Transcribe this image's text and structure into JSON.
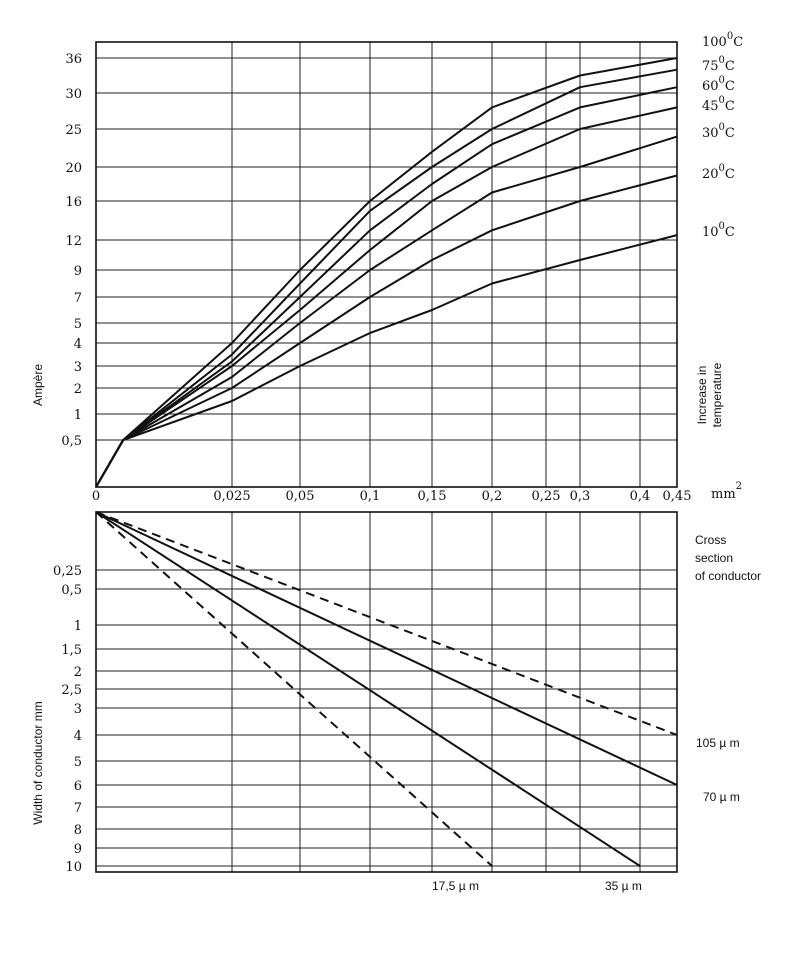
{
  "chart_data": [
    {
      "type": "line",
      "title": "",
      "xlabel": "",
      "x_unit": "mm²",
      "ylabel": "Ampère",
      "right_label": "Increase in temperature",
      "xlim": [
        0,
        0.45
      ],
      "x_scale": "nonlinear (as printed)",
      "x_ticks": [
        "0",
        "0,025",
        "0,05",
        "0,1",
        "0,15",
        "0,2",
        "0,25",
        "0,3",
        "0,4",
        "0,45"
      ],
      "y_scale": "nonlinear (as printed)",
      "y_ticks": [
        "0,5",
        "1",
        "2",
        "3",
        "4",
        "5",
        "7",
        "9",
        "12",
        "16",
        "20",
        "25",
        "30",
        "36"
      ],
      "grid": true,
      "series": [
        {
          "name": "100°C",
          "points": [
            [
              0,
              0
            ],
            [
              0.005,
              0.5
            ],
            [
              0.025,
              4
            ],
            [
              0.05,
              9
            ],
            [
              0.1,
              16
            ],
            [
              0.15,
              22
            ],
            [
              0.2,
              28
            ],
            [
              0.3,
              33
            ],
            [
              0.45,
              36
            ]
          ]
        },
        {
          "name": "75°C",
          "points": [
            [
              0,
              0
            ],
            [
              0.005,
              0.5
            ],
            [
              0.025,
              3.5
            ],
            [
              0.05,
              8
            ],
            [
              0.1,
              15
            ],
            [
              0.15,
              20
            ],
            [
              0.2,
              25
            ],
            [
              0.3,
              31
            ],
            [
              0.45,
              34
            ]
          ]
        },
        {
          "name": "60°C",
          "points": [
            [
              0,
              0
            ],
            [
              0.005,
              0.5
            ],
            [
              0.025,
              3.2
            ],
            [
              0.05,
              7
            ],
            [
              0.1,
              13
            ],
            [
              0.15,
              18
            ],
            [
              0.2,
              23
            ],
            [
              0.3,
              28
            ],
            [
              0.45,
              31
            ]
          ]
        },
        {
          "name": "45°C",
          "points": [
            [
              0,
              0
            ],
            [
              0.005,
              0.5
            ],
            [
              0.025,
              3
            ],
            [
              0.05,
              6
            ],
            [
              0.1,
              11
            ],
            [
              0.15,
              16
            ],
            [
              0.2,
              20
            ],
            [
              0.3,
              25
            ],
            [
              0.45,
              28
            ]
          ]
        },
        {
          "name": "30°C",
          "points": [
            [
              0,
              0
            ],
            [
              0.005,
              0.5
            ],
            [
              0.025,
              2.5
            ],
            [
              0.05,
              5
            ],
            [
              0.1,
              9
            ],
            [
              0.15,
              13
            ],
            [
              0.2,
              17
            ],
            [
              0.3,
              20
            ],
            [
              0.45,
              24
            ]
          ]
        },
        {
          "name": "20°C",
          "points": [
            [
              0,
              0
            ],
            [
              0.005,
              0.5
            ],
            [
              0.025,
              2
            ],
            [
              0.05,
              4
            ],
            [
              0.1,
              7
            ],
            [
              0.15,
              10
            ],
            [
              0.2,
              13
            ],
            [
              0.3,
              16
            ],
            [
              0.45,
              19
            ]
          ]
        },
        {
          "name": "10°C",
          "points": [
            [
              0,
              0
            ],
            [
              0.005,
              0.5
            ],
            [
              0.025,
              1.5
            ],
            [
              0.05,
              3
            ],
            [
              0.1,
              4.5
            ],
            [
              0.15,
              6
            ],
            [
              0.2,
              8
            ],
            [
              0.3,
              10
            ],
            [
              0.45,
              12.5
            ]
          ]
        }
      ]
    },
    {
      "type": "line",
      "title": "",
      "xlabel": "Cross section of conductor",
      "ylabel": "Width of conductor mm",
      "y_ticks": [
        "0,25",
        "0,5",
        "1",
        "1,5",
        "2",
        "2,5",
        "3",
        "4",
        "5",
        "6",
        "7",
        "8",
        "9",
        "10"
      ],
      "grid": true,
      "series": [
        {
          "name": "105 µ m",
          "style": "dashed",
          "points": [
            [
              0,
              0
            ],
            [
              0.45,
              4
            ]
          ]
        },
        {
          "name": "70 µ m",
          "style": "solid",
          "points": [
            [
              0,
              0
            ],
            [
              0.45,
              6
            ]
          ]
        },
        {
          "name": "35 µ m",
          "style": "solid",
          "points": [
            [
              0,
              0
            ],
            [
              0.4,
              10
            ]
          ]
        },
        {
          "name": "17,5 µ m",
          "style": "dashed",
          "points": [
            [
              0,
              0
            ],
            [
              0.2,
              10
            ]
          ]
        }
      ]
    }
  ],
  "temp_labels": [
    {
      "main": "100",
      "sup": "0",
      "unit": "C"
    },
    {
      "main": "75",
      "sup": "0",
      "unit": "C"
    },
    {
      "main": "60",
      "sup": "0",
      "unit": "C"
    },
    {
      "main": "45",
      "sup": "0",
      "unit": "C"
    },
    {
      "main": "30",
      "sup": "0",
      "unit": "C"
    },
    {
      "main": "20",
      "sup": "0",
      "unit": "C"
    },
    {
      "main": "10",
      "sup": "0",
      "unit": "C"
    }
  ],
  "mm_label": {
    "main": "mm",
    "sup": "2"
  },
  "cross_section_lines": [
    "Cross",
    "section",
    "of  conductor"
  ],
  "thickness_labels": [
    "105 µ m",
    "70 µ m",
    "17,5 µ m",
    "35 µ m"
  ]
}
